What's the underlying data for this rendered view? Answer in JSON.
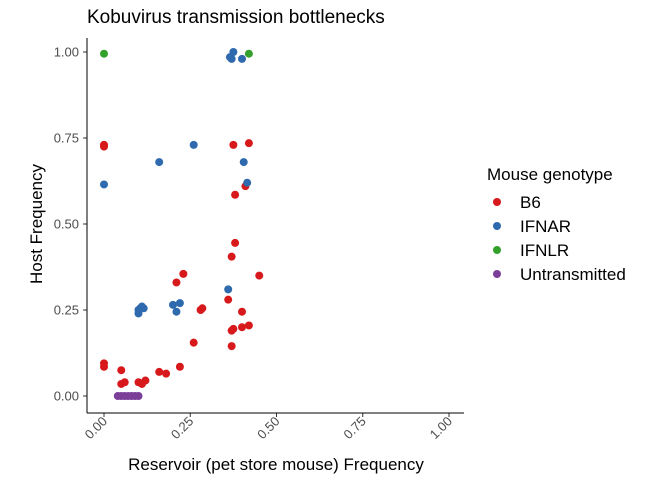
{
  "chart_data": {
    "type": "scatter",
    "title": "Kobuvirus transmission bottlenecks",
    "xlabel": "Reservoir (pet store mouse) Frequency",
    "ylabel": "Host Frequency",
    "xlim": [
      0,
      1
    ],
    "ylim": [
      0,
      1
    ],
    "x_ticks": [
      "0.00",
      "0.25",
      "0.50",
      "0.75",
      "1.00"
    ],
    "y_ticks": [
      "0.00",
      "0.25",
      "0.50",
      "0.75",
      "1.00"
    ],
    "grid": false,
    "legend": {
      "title": "Mouse genotype",
      "placement": "right"
    },
    "series": [
      {
        "name": "B6",
        "color": "#d7191c",
        "points": [
          [
            0.0,
            0.73
          ],
          [
            0.0,
            0.725
          ],
          [
            0.0,
            0.095
          ],
          [
            0.0,
            0.085
          ],
          [
            0.05,
            0.075
          ],
          [
            0.05,
            0.035
          ],
          [
            0.06,
            0.04
          ],
          [
            0.1,
            0.04
          ],
          [
            0.11,
            0.035
          ],
          [
            0.12,
            0.045
          ],
          [
            0.16,
            0.07
          ],
          [
            0.18,
            0.065
          ],
          [
            0.21,
            0.33
          ],
          [
            0.22,
            0.085
          ],
          [
            0.23,
            0.355
          ],
          [
            0.26,
            0.155
          ],
          [
            0.28,
            0.25
          ],
          [
            0.285,
            0.255
          ],
          [
            0.36,
            0.28
          ],
          [
            0.37,
            0.145
          ],
          [
            0.37,
            0.19
          ],
          [
            0.375,
            0.195
          ],
          [
            0.37,
            0.405
          ],
          [
            0.375,
            0.73
          ],
          [
            0.38,
            0.585
          ],
          [
            0.38,
            0.445
          ],
          [
            0.4,
            0.245
          ],
          [
            0.4,
            0.2
          ],
          [
            0.41,
            0.61
          ],
          [
            0.42,
            0.735
          ],
          [
            0.42,
            0.205
          ],
          [
            0.45,
            0.35
          ]
        ]
      },
      {
        "name": "IFNAR",
        "color": "#2e6aad",
        "points": [
          [
            0.0,
            0.615
          ],
          [
            0.1,
            0.24
          ],
          [
            0.1,
            0.25
          ],
          [
            0.105,
            0.255
          ],
          [
            0.11,
            0.26
          ],
          [
            0.115,
            0.255
          ],
          [
            0.16,
            0.68
          ],
          [
            0.2,
            0.265
          ],
          [
            0.21,
            0.245
          ],
          [
            0.22,
            0.27
          ],
          [
            0.26,
            0.73
          ],
          [
            0.36,
            0.31
          ],
          [
            0.365,
            0.985
          ],
          [
            0.37,
            0.98
          ],
          [
            0.375,
            1.0
          ],
          [
            0.4,
            0.98
          ],
          [
            0.405,
            0.68
          ],
          [
            0.415,
            0.62
          ]
        ]
      },
      {
        "name": "IFNLR",
        "color": "#33a02c",
        "points": [
          [
            0.0,
            0.995
          ],
          [
            0.42,
            0.995
          ]
        ]
      },
      {
        "name": "Untransmitted",
        "color": "#7b3f98",
        "points": [
          [
            0.04,
            0.0
          ],
          [
            0.05,
            0.0
          ],
          [
            0.06,
            0.0
          ],
          [
            0.07,
            0.0
          ],
          [
            0.08,
            0.0
          ],
          [
            0.09,
            0.0
          ],
          [
            0.1,
            0.0
          ]
        ]
      }
    ]
  }
}
